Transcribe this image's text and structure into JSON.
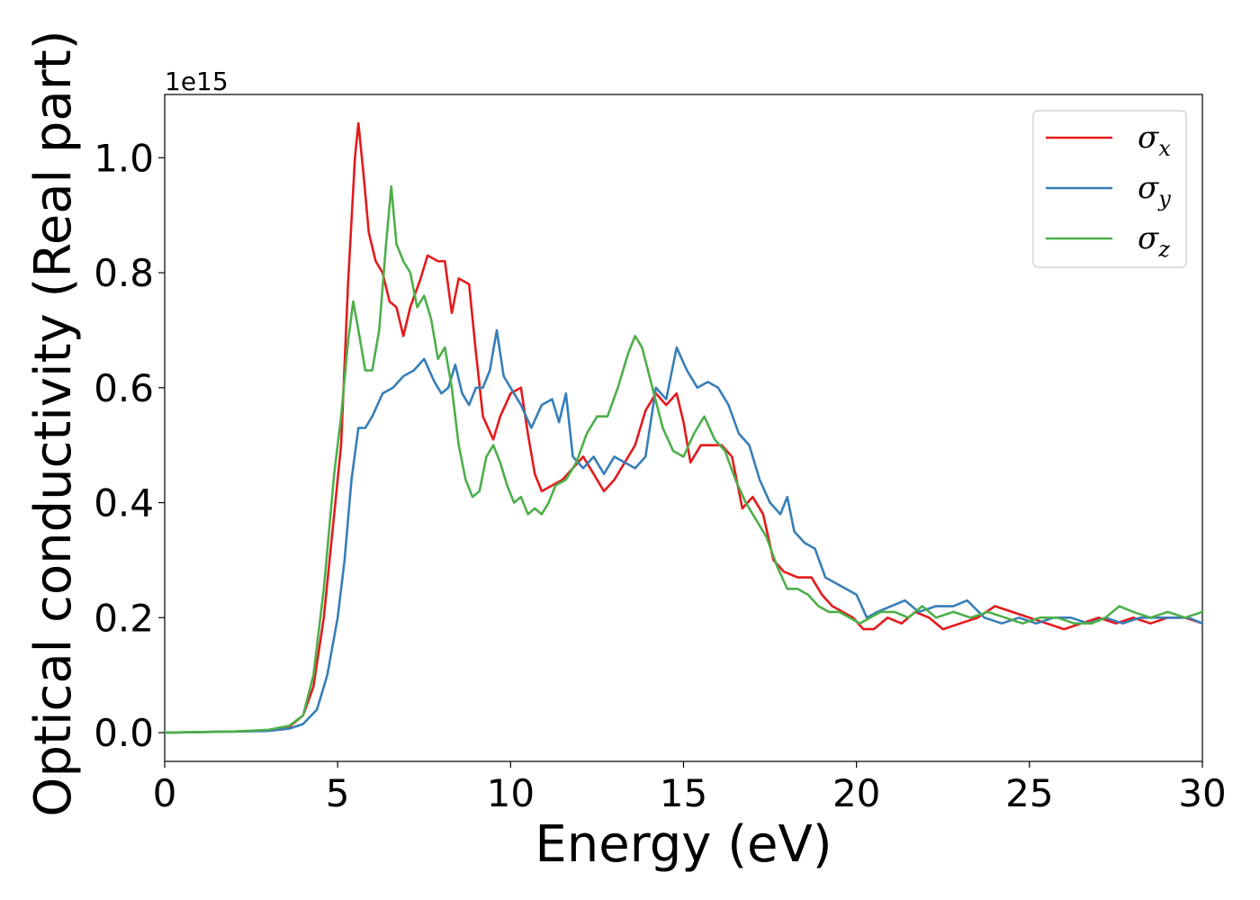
{
  "chart_data": {
    "type": "line",
    "xlabel": "Energy (eV)",
    "ylabel": "Optical conductivity (Real part)",
    "y_offset_label": "1e15",
    "y_scale": 1000000000000000.0,
    "xlim": [
      0,
      30
    ],
    "ylim": [
      -0.05,
      1.11
    ],
    "x_ticks": [
      0,
      5,
      10,
      15,
      20,
      25,
      30
    ],
    "x_tick_labels": [
      "0",
      "5",
      "10",
      "15",
      "20",
      "25",
      "30"
    ],
    "y_ticks": [
      0.0,
      0.2,
      0.4,
      0.6,
      0.8,
      1.0
    ],
    "y_tick_labels": [
      "0.0",
      "0.2",
      "0.4",
      "0.6",
      "0.8",
      "1.0"
    ],
    "grid": false,
    "legend_position": "upper right",
    "series": [
      {
        "name": "σx",
        "legend_symbol": "σ",
        "legend_subscript": "x",
        "color": "#e41a1c",
        "x": [
          0,
          1,
          2,
          3,
          3.6,
          4.0,
          4.3,
          4.6,
          4.9,
          5.1,
          5.3,
          5.5,
          5.6,
          5.75,
          5.9,
          6.1,
          6.3,
          6.5,
          6.7,
          6.9,
          7.1,
          7.4,
          7.6,
          7.9,
          8.1,
          8.3,
          8.5,
          8.8,
          9.0,
          9.2,
          9.5,
          9.7,
          10.0,
          10.3,
          10.5,
          10.7,
          10.9,
          11.2,
          11.5,
          11.8,
          12.1,
          12.4,
          12.7,
          13.0,
          13.3,
          13.6,
          13.9,
          14.2,
          14.5,
          14.8,
          15.0,
          15.2,
          15.5,
          15.8,
          16.1,
          16.4,
          16.7,
          17.0,
          17.3,
          17.6,
          17.9,
          18.3,
          18.7,
          19.0,
          19.3,
          19.6,
          19.9,
          20.2,
          20.5,
          20.9,
          21.3,
          21.7,
          22.1,
          22.5,
          23.0,
          23.5,
          24.0,
          24.5,
          25.0,
          25.5,
          26.0,
          26.5,
          27.0,
          27.5,
          28.0,
          28.5,
          29.0,
          29.5,
          30.0
        ],
        "y": [
          0.0,
          0.001,
          0.002,
          0.004,
          0.01,
          0.03,
          0.08,
          0.2,
          0.38,
          0.5,
          0.78,
          1.0,
          1.06,
          0.97,
          0.87,
          0.82,
          0.8,
          0.75,
          0.74,
          0.69,
          0.74,
          0.79,
          0.83,
          0.82,
          0.82,
          0.73,
          0.79,
          0.78,
          0.66,
          0.55,
          0.51,
          0.55,
          0.59,
          0.6,
          0.52,
          0.45,
          0.42,
          0.43,
          0.44,
          0.46,
          0.48,
          0.45,
          0.42,
          0.44,
          0.47,
          0.5,
          0.56,
          0.59,
          0.57,
          0.59,
          0.54,
          0.47,
          0.5,
          0.5,
          0.5,
          0.48,
          0.39,
          0.41,
          0.38,
          0.3,
          0.28,
          0.27,
          0.27,
          0.24,
          0.22,
          0.21,
          0.2,
          0.18,
          0.18,
          0.2,
          0.19,
          0.21,
          0.2,
          0.18,
          0.19,
          0.2,
          0.22,
          0.21,
          0.2,
          0.19,
          0.18,
          0.19,
          0.2,
          0.19,
          0.2,
          0.19,
          0.2,
          0.2,
          0.19
        ]
      },
      {
        "name": "σy",
        "legend_symbol": "σ",
        "legend_subscript": "y",
        "color": "#377eb8",
        "x": [
          0,
          1,
          2,
          3,
          3.6,
          4.0,
          4.4,
          4.7,
          5.0,
          5.2,
          5.4,
          5.6,
          5.8,
          6.0,
          6.3,
          6.6,
          6.9,
          7.2,
          7.5,
          7.8,
          8.0,
          8.2,
          8.4,
          8.6,
          8.8,
          9.0,
          9.2,
          9.4,
          9.6,
          9.8,
          10.0,
          10.3,
          10.6,
          10.9,
          11.2,
          11.4,
          11.6,
          11.8,
          12.1,
          12.4,
          12.7,
          13.0,
          13.3,
          13.6,
          13.9,
          14.2,
          14.5,
          14.8,
          15.1,
          15.4,
          15.7,
          16.0,
          16.3,
          16.6,
          16.9,
          17.2,
          17.5,
          17.8,
          18.0,
          18.2,
          18.5,
          18.8,
          19.1,
          19.4,
          19.7,
          20.0,
          20.3,
          20.6,
          21.0,
          21.4,
          21.8,
          22.3,
          22.8,
          23.2,
          23.7,
          24.2,
          24.7,
          25.2,
          25.7,
          26.2,
          26.7,
          27.2,
          27.7,
          28.2,
          28.7,
          29.2,
          29.6,
          30.0
        ],
        "y": [
          0.0,
          0.001,
          0.002,
          0.003,
          0.007,
          0.015,
          0.04,
          0.1,
          0.2,
          0.3,
          0.44,
          0.53,
          0.53,
          0.55,
          0.59,
          0.6,
          0.62,
          0.63,
          0.65,
          0.61,
          0.59,
          0.6,
          0.64,
          0.59,
          0.57,
          0.6,
          0.6,
          0.63,
          0.7,
          0.62,
          0.6,
          0.57,
          0.53,
          0.57,
          0.58,
          0.54,
          0.59,
          0.48,
          0.46,
          0.48,
          0.45,
          0.48,
          0.47,
          0.46,
          0.48,
          0.6,
          0.58,
          0.67,
          0.63,
          0.6,
          0.61,
          0.6,
          0.57,
          0.52,
          0.5,
          0.44,
          0.4,
          0.38,
          0.41,
          0.35,
          0.33,
          0.32,
          0.27,
          0.26,
          0.25,
          0.24,
          0.2,
          0.21,
          0.22,
          0.23,
          0.21,
          0.22,
          0.22,
          0.23,
          0.2,
          0.19,
          0.2,
          0.19,
          0.2,
          0.2,
          0.19,
          0.2,
          0.19,
          0.2,
          0.2,
          0.2,
          0.2,
          0.19
        ]
      },
      {
        "name": "σz",
        "legend_symbol": "σ",
        "legend_subscript": "z",
        "color": "#4daf4a",
        "x": [
          0,
          1,
          2,
          3,
          3.6,
          4.0,
          4.3,
          4.6,
          4.9,
          5.1,
          5.3,
          5.45,
          5.6,
          5.8,
          6.0,
          6.2,
          6.4,
          6.55,
          6.7,
          6.9,
          7.1,
          7.3,
          7.5,
          7.7,
          7.9,
          8.1,
          8.3,
          8.5,
          8.7,
          8.9,
          9.1,
          9.3,
          9.5,
          9.7,
          9.9,
          10.1,
          10.3,
          10.5,
          10.7,
          10.9,
          11.1,
          11.3,
          11.6,
          11.9,
          12.2,
          12.5,
          12.8,
          13.1,
          13.4,
          13.6,
          13.8,
          14.1,
          14.4,
          14.7,
          15.0,
          15.3,
          15.6,
          15.9,
          16.2,
          16.5,
          16.8,
          17.1,
          17.4,
          17.7,
          18.0,
          18.3,
          18.6,
          18.9,
          19.2,
          19.5,
          19.8,
          20.1,
          20.4,
          20.7,
          21.1,
          21.5,
          21.9,
          22.3,
          22.8,
          23.3,
          23.8,
          24.3,
          24.8,
          25.3,
          25.8,
          26.3,
          26.8,
          27.2,
          27.6,
          28.0,
          28.5,
          29.0,
          29.5,
          30.0
        ],
        "y": [
          0.0,
          0.001,
          0.002,
          0.005,
          0.012,
          0.03,
          0.1,
          0.25,
          0.45,
          0.55,
          0.68,
          0.75,
          0.7,
          0.63,
          0.63,
          0.7,
          0.85,
          0.95,
          0.85,
          0.82,
          0.8,
          0.74,
          0.76,
          0.72,
          0.65,
          0.67,
          0.6,
          0.5,
          0.44,
          0.41,
          0.42,
          0.48,
          0.5,
          0.47,
          0.43,
          0.4,
          0.41,
          0.38,
          0.39,
          0.38,
          0.4,
          0.43,
          0.44,
          0.47,
          0.52,
          0.55,
          0.55,
          0.6,
          0.66,
          0.69,
          0.67,
          0.6,
          0.53,
          0.49,
          0.48,
          0.52,
          0.55,
          0.51,
          0.49,
          0.44,
          0.4,
          0.37,
          0.34,
          0.29,
          0.25,
          0.25,
          0.24,
          0.22,
          0.21,
          0.21,
          0.2,
          0.19,
          0.2,
          0.21,
          0.21,
          0.2,
          0.22,
          0.2,
          0.21,
          0.2,
          0.21,
          0.2,
          0.19,
          0.2,
          0.2,
          0.19,
          0.19,
          0.2,
          0.22,
          0.21,
          0.2,
          0.21,
          0.2,
          0.21
        ]
      }
    ]
  }
}
